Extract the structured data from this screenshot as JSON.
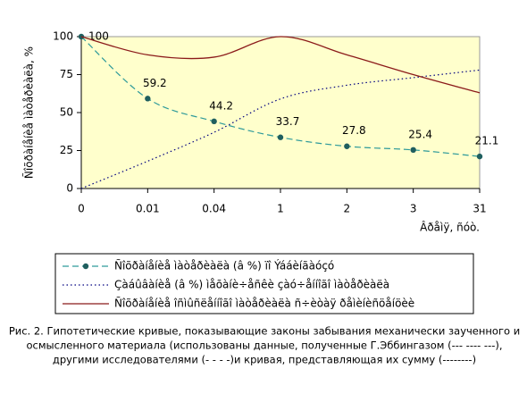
{
  "chart_data": {
    "type": "line",
    "y_label": "Ñîõðàíåíèå ìàòåðèàëà, %",
    "x_label": "Âðåìÿ, ñóò.",
    "categories": [
      "0",
      "0.01",
      "0.04",
      "1",
      "2",
      "3",
      "31"
    ],
    "ylim": [
      0,
      100
    ],
    "yticks": [
      0,
      25,
      50,
      75,
      100
    ],
    "series": [
      {
        "name": "Ñîõðàíåíèå ìàòåðèàëà (â %) ïî Ýááèíãàóçó",
        "color": "#2e9a9a",
        "marker_color": "#1f5f5f",
        "style": "dashed",
        "values": [
          100,
          59.2,
          44.2,
          33.7,
          27.8,
          25.4,
          21.1
        ],
        "value_labels": [
          "100",
          "59.2",
          "44.2",
          "33.7",
          "27.8",
          "25.4",
          "21.1"
        ]
      },
      {
        "name": "Çàáûâàíèå (â %) ìåõàíè÷åñêè çàó÷åííîãî ìàòåðèàëà",
        "color": "#000080",
        "style": "dotted",
        "values": [
          0,
          18,
          37,
          59,
          68,
          73,
          78
        ]
      },
      {
        "name": "Ñîõðàíåíèå îñìûñëåííîãî ìàòåðèàëà ñ÷èòàÿ ðåìèíèñöåíöèè",
        "color": "#8b1a1a",
        "style": "solid",
        "values": [
          100,
          88,
          86.5,
          100,
          88,
          75,
          63
        ]
      }
    ],
    "caption": [
      "Рис. 2. Гипотетические кривые, показывающие законы забывания механически заученного и",
      "осмысленного материала (использованы данные, полученные Г.Эббингазом (--- ---- ---),",
      "другими исследователями (- - - -)и кривая, представляющая их сумму (--------)"
    ]
  }
}
